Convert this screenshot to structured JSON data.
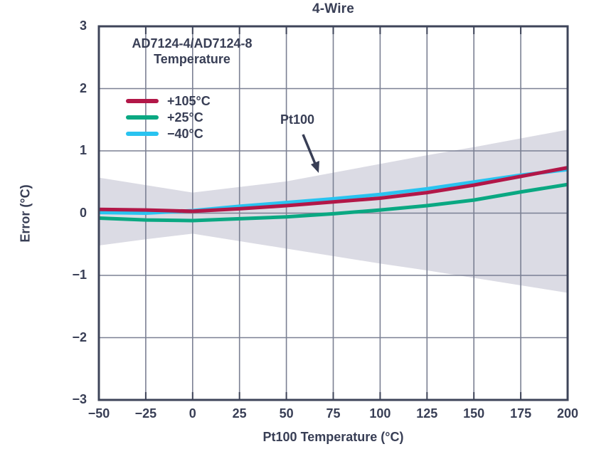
{
  "chart_data": {
    "type": "line",
    "title": "4-Wire",
    "xlabel": "Pt100 Temperature (°C)",
    "ylabel": "Error (°C)",
    "xlim": [
      -50,
      200
    ],
    "ylim": [
      -3,
      3
    ],
    "grid": true,
    "x": [
      -50,
      -25,
      0,
      25,
      50,
      75,
      100,
      125,
      150,
      175,
      200
    ],
    "xtick_labels": [
      "−50",
      "−25",
      "0",
      "25",
      "50",
      "75",
      "100",
      "125",
      "150",
      "175",
      "200"
    ],
    "yticks": [
      3,
      2,
      1,
      0,
      -1,
      -2,
      -3
    ],
    "ytick_labels": [
      "3",
      "2",
      "1",
      "0",
      "−1",
      "−2",
      "−3"
    ],
    "legend": {
      "position": "top-left",
      "heading_line1": "AD7124-4/AD7124-8",
      "heading_line2": "Temperature"
    },
    "series": [
      {
        "name": "+105°C",
        "color": "#b21748",
        "values": [
          0.06,
          0.05,
          0.03,
          0.07,
          0.12,
          0.18,
          0.24,
          0.33,
          0.45,
          0.59,
          0.73
        ]
      },
      {
        "name": "+25°C",
        "color": "#0aa882",
        "values": [
          -0.08,
          -0.11,
          -0.12,
          -0.09,
          -0.06,
          -0.01,
          0.05,
          0.12,
          0.21,
          0.34,
          0.46
        ]
      },
      {
        "name": "−40°C",
        "color": "#29c3f0",
        "values": [
          0.01,
          0.0,
          0.04,
          0.11,
          0.17,
          0.23,
          0.3,
          0.39,
          0.5,
          0.61,
          0.7
        ]
      }
    ],
    "band": {
      "label": "Pt100",
      "color": "#dbdbe4",
      "top": [
        0.57,
        0.45,
        0.33,
        0.42,
        0.51,
        0.65,
        0.79,
        0.93,
        1.06,
        1.2,
        1.34
      ],
      "bottom": [
        -0.52,
        -0.42,
        -0.33,
        -0.45,
        -0.57,
        -0.69,
        -0.81,
        -0.92,
        -1.04,
        -1.16,
        -1.28
      ]
    },
    "colors": {
      "text": "#383e55",
      "grid": "#7b8093",
      "frame": "#3e4459",
      "background": "#ffffff"
    }
  }
}
